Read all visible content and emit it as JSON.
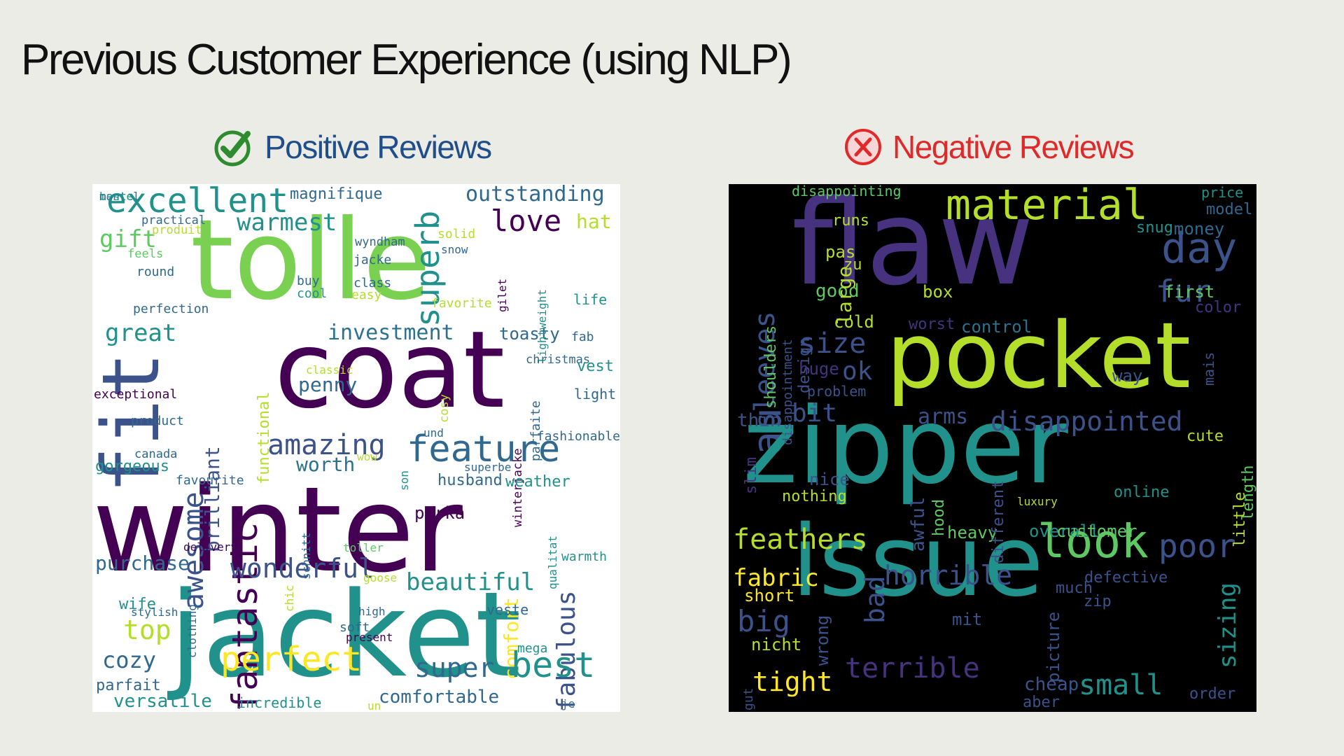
{
  "slide": {
    "title": "Previous Customer Experience (using NLP)"
  },
  "positive": {
    "heading": "Positive Reviews",
    "icon": "check-circle-icon",
    "accent": "#1f4e8a",
    "icon_color": "#2e8b2e"
  },
  "negative": {
    "heading": "Negative Reviews",
    "icon": "x-circle-icon",
    "accent": "#e02a2a"
  },
  "positive_words": [
    {
      "t": "excellent",
      "c": "#21918c"
    },
    {
      "t": "magnifique",
      "c": "#31688e"
    },
    {
      "t": "outstanding",
      "c": "#31688e"
    },
    {
      "t": "tolle",
      "c": "#7ad151"
    },
    {
      "t": "fit",
      "c": "#3b528b"
    },
    {
      "t": "warmest",
      "c": "#21918c"
    },
    {
      "t": "love",
      "c": "#440154"
    },
    {
      "t": "superb",
      "c": "#21918c"
    },
    {
      "t": "hat",
      "c": "#b5de2b"
    },
    {
      "t": "gift",
      "c": "#5ec962"
    },
    {
      "t": "practical",
      "c": "#31688e"
    },
    {
      "t": "coat",
      "c": "#440154"
    },
    {
      "t": "winter",
      "c": "#440154"
    },
    {
      "t": "jacket",
      "c": "#21918c"
    },
    {
      "t": "awesome",
      "c": "#3b528b"
    },
    {
      "t": "fantastic",
      "c": "#440154"
    },
    {
      "t": "brilliant",
      "c": "#3b528b"
    },
    {
      "t": "functional",
      "c": "#b5de2b"
    },
    {
      "t": "amazing",
      "c": "#3b528b"
    },
    {
      "t": "feature",
      "c": "#31688e"
    },
    {
      "t": "investment",
      "c": "#2c728e"
    },
    {
      "t": "toasty",
      "c": "#31688e"
    },
    {
      "t": "great",
      "c": "#21918c"
    },
    {
      "t": "fab",
      "c": "#31688e"
    },
    {
      "t": "vest",
      "c": "#21918c"
    },
    {
      "t": "penny",
      "c": "#31688e"
    },
    {
      "t": "light",
      "c": "#31688e"
    },
    {
      "t": "parfaite",
      "c": "#31688e"
    },
    {
      "t": "winterjacke",
      "c": "#440154"
    },
    {
      "t": "fashionable",
      "c": "#31688e"
    },
    {
      "t": "worth",
      "c": "#2c728e"
    },
    {
      "t": "husband",
      "c": "#31688e"
    },
    {
      "t": "weather",
      "c": "#21918c"
    },
    {
      "t": "gorgeous",
      "c": "#21918c"
    },
    {
      "t": "exceptional",
      "c": "#440154"
    },
    {
      "t": "product",
      "c": "#31688e"
    },
    {
      "t": "canada",
      "c": "#31688e"
    },
    {
      "t": "favourite",
      "c": "#31688e"
    },
    {
      "t": "parka",
      "c": "#440154"
    },
    {
      "t": "comfort",
      "c": "#fde725"
    },
    {
      "t": "fabulous",
      "c": "#3b528b"
    },
    {
      "t": "purchase",
      "c": "#31688e"
    },
    {
      "t": "wonderful",
      "c": "#3b528b"
    },
    {
      "t": "beautiful",
      "c": "#21918c"
    },
    {
      "t": "wife",
      "c": "#21918c"
    },
    {
      "t": "top",
      "c": "#b5de2b"
    },
    {
      "t": "cozy",
      "c": "#31688e"
    },
    {
      "t": "perfect",
      "c": "#fde725"
    },
    {
      "t": "super",
      "c": "#31688e"
    },
    {
      "t": "best",
      "c": "#21918c"
    },
    {
      "t": "parfait",
      "c": "#31688e"
    },
    {
      "t": "versatile",
      "c": "#21918c"
    },
    {
      "t": "incredible",
      "c": "#21918c"
    },
    {
      "t": "comfortable",
      "c": "#31688e"
    },
    {
      "t": "life",
      "c": "#21918c"
    },
    {
      "t": "perfection",
      "c": "#31688e"
    },
    {
      "t": "round",
      "c": "#31688e"
    },
    {
      "t": "buy",
      "c": "#31688e"
    },
    {
      "t": "cool",
      "c": "#21918c"
    },
    {
      "t": "class",
      "c": "#31688e"
    },
    {
      "t": "jacke",
      "c": "#31688e"
    },
    {
      "t": "easy",
      "c": "#b5de2b"
    },
    {
      "t": "solid",
      "c": "#b5de2b"
    },
    {
      "t": "snow",
      "c": "#31688e"
    },
    {
      "t": "favorite",
      "c": "#b5de2b"
    },
    {
      "t": "produit",
      "c": "#b5de2b"
    },
    {
      "t": "feels",
      "c": "#5ec962"
    },
    {
      "t": "wyndham",
      "c": "#31688e"
    },
    {
      "t": "gilet",
      "c": "#440154"
    },
    {
      "t": "lightweight",
      "c": "#21918c"
    },
    {
      "t": "classic",
      "c": "#b5de2b"
    },
    {
      "t": "superbe",
      "c": "#31688e"
    },
    {
      "t": "cosy",
      "c": "#b5de2b"
    },
    {
      "t": "christmas",
      "c": "#31688e"
    },
    {
      "t": "und",
      "c": "#31688e"
    },
    {
      "t": "toller",
      "c": "#5ec962"
    },
    {
      "t": "goose",
      "c": "#b5de2b"
    },
    {
      "t": "high",
      "c": "#31688e"
    },
    {
      "t": "veste",
      "c": "#31688e"
    },
    {
      "t": "soft",
      "c": "#31688e"
    },
    {
      "t": "present",
      "c": "#440154"
    },
    {
      "t": "mega",
      "c": "#21918c"
    },
    {
      "t": "schnitt",
      "c": "#31688e"
    },
    {
      "t": "chic",
      "c": "#b5de2b"
    },
    {
      "t": "clothing",
      "c": "#31688e"
    },
    {
      "t": "stylish",
      "c": "#31688e"
    },
    {
      "t": "qualitat",
      "c": "#21918c"
    },
    {
      "t": "warmth",
      "c": "#21918c"
    },
    {
      "t": "delivery",
      "c": "#440154"
    },
    {
      "t": "wow",
      "c": "#b5de2b"
    },
    {
      "t": "son",
      "c": "#21918c"
    },
    {
      "t": "un",
      "c": "#b5de2b"
    },
    {
      "t": "je",
      "c": "#31688e"
    },
    {
      "t": "mantel",
      "c": "#31688e"
    },
    {
      "t": "beste",
      "c": "#21918c"
    }
  ],
  "negative_words": [
    {
      "t": "flaw",
      "c": "#46327e"
    },
    {
      "t": "material",
      "c": "#b5de2b"
    },
    {
      "t": "price",
      "c": "#21918c"
    },
    {
      "t": "disappointing",
      "c": "#5ec962"
    },
    {
      "t": "day",
      "c": "#3b528b"
    },
    {
      "t": "model",
      "c": "#31688e"
    },
    {
      "t": "money",
      "c": "#31688e"
    },
    {
      "t": "snug",
      "c": "#21918c"
    },
    {
      "t": "sleeves",
      "c": "#3b528b"
    },
    {
      "t": "au",
      "c": "#3b528b"
    },
    {
      "t": "pocket",
      "c": "#b5de2b"
    },
    {
      "t": "zipper",
      "c": "#21918c"
    },
    {
      "t": "issue",
      "c": "#21918c"
    },
    {
      "t": "runs",
      "c": "#b5de2b"
    },
    {
      "t": "pas",
      "c": "#b5de2b"
    },
    {
      "t": "zu",
      "c": "#b5de2b"
    },
    {
      "t": "good",
      "c": "#5ec962"
    },
    {
      "t": "box",
      "c": "#b5de2b"
    },
    {
      "t": "large",
      "c": "#b5de2b"
    },
    {
      "t": "fur",
      "c": "#3b528b"
    },
    {
      "t": "first",
      "c": "#5ec962"
    },
    {
      "t": "color",
      "c": "#46327e"
    },
    {
      "t": "cold",
      "c": "#b5de2b"
    },
    {
      "t": "worst",
      "c": "#46327e"
    },
    {
      "t": "control",
      "c": "#2c728e"
    },
    {
      "t": "size",
      "c": "#3b528b"
    },
    {
      "t": "ok",
      "c": "#3b528b"
    },
    {
      "t": "problem",
      "c": "#3b528b"
    },
    {
      "t": "bit",
      "c": "#3b528b"
    },
    {
      "t": "thin",
      "c": "#3b528b"
    },
    {
      "t": "arms",
      "c": "#3b528b"
    },
    {
      "t": "disappointed",
      "c": "#3b528b"
    },
    {
      "t": "cute",
      "c": "#b5de2b"
    },
    {
      "t": "nice",
      "c": "#3b528b"
    },
    {
      "t": "nothing",
      "c": "#b5de2b"
    },
    {
      "t": "feathers",
      "c": "#b5de2b"
    },
    {
      "t": "look",
      "c": "#5ec962"
    },
    {
      "t": "poor",
      "c": "#3b528b"
    },
    {
      "t": "fabric",
      "c": "#fde725"
    },
    {
      "t": "horrible",
      "c": "#3b528b"
    },
    {
      "t": "short",
      "c": "#fde725"
    },
    {
      "t": "big",
      "c": "#3b528b"
    },
    {
      "t": "bad",
      "c": "#3b528b"
    },
    {
      "t": "terrible",
      "c": "#46327e"
    },
    {
      "t": "tight",
      "c": "#fde725"
    },
    {
      "t": "small",
      "c": "#21918c"
    },
    {
      "t": "cheap",
      "c": "#3b528b"
    },
    {
      "t": "aber",
      "c": "#3b528b"
    },
    {
      "t": "order",
      "c": "#3b528b"
    },
    {
      "t": "sizing",
      "c": "#21918c"
    },
    {
      "t": "defective",
      "c": "#3b528b"
    },
    {
      "t": "much",
      "c": "#3b528b"
    },
    {
      "t": "zip",
      "c": "#3b528b"
    },
    {
      "t": "online",
      "c": "#21918c"
    },
    {
      "t": "heavy",
      "c": "#5ec962"
    },
    {
      "t": "overall",
      "c": "#21918c"
    },
    {
      "t": "customer",
      "c": "#5ec962"
    },
    {
      "t": "nicht",
      "c": "#b5de2b"
    },
    {
      "t": "wrong",
      "c": "#3b528b"
    },
    {
      "t": "mit",
      "c": "#3b528b"
    },
    {
      "t": "different",
      "c": "#3b528b"
    },
    {
      "t": "awful",
      "c": "#3b528b"
    },
    {
      "t": "hood",
      "c": "#5ec962"
    },
    {
      "t": "little",
      "c": "#b5de2b"
    },
    {
      "t": "length",
      "c": "#5ec962"
    },
    {
      "t": "picture",
      "c": "#3b528b"
    },
    {
      "t": "shoulders",
      "c": "#5ec962"
    },
    {
      "t": "design",
      "c": "#3b528b"
    },
    {
      "t": "disappointment",
      "c": "#3b528b"
    },
    {
      "t": "huge",
      "c": "#46327e"
    },
    {
      "t": "slim",
      "c": "#46327e"
    },
    {
      "t": "way",
      "c": "#3b528b"
    },
    {
      "t": "mais",
      "c": "#3b528b"
    },
    {
      "t": "gut",
      "c": "#3b528b"
    },
    {
      "t": "luxury",
      "c": "#b5de2b"
    }
  ]
}
